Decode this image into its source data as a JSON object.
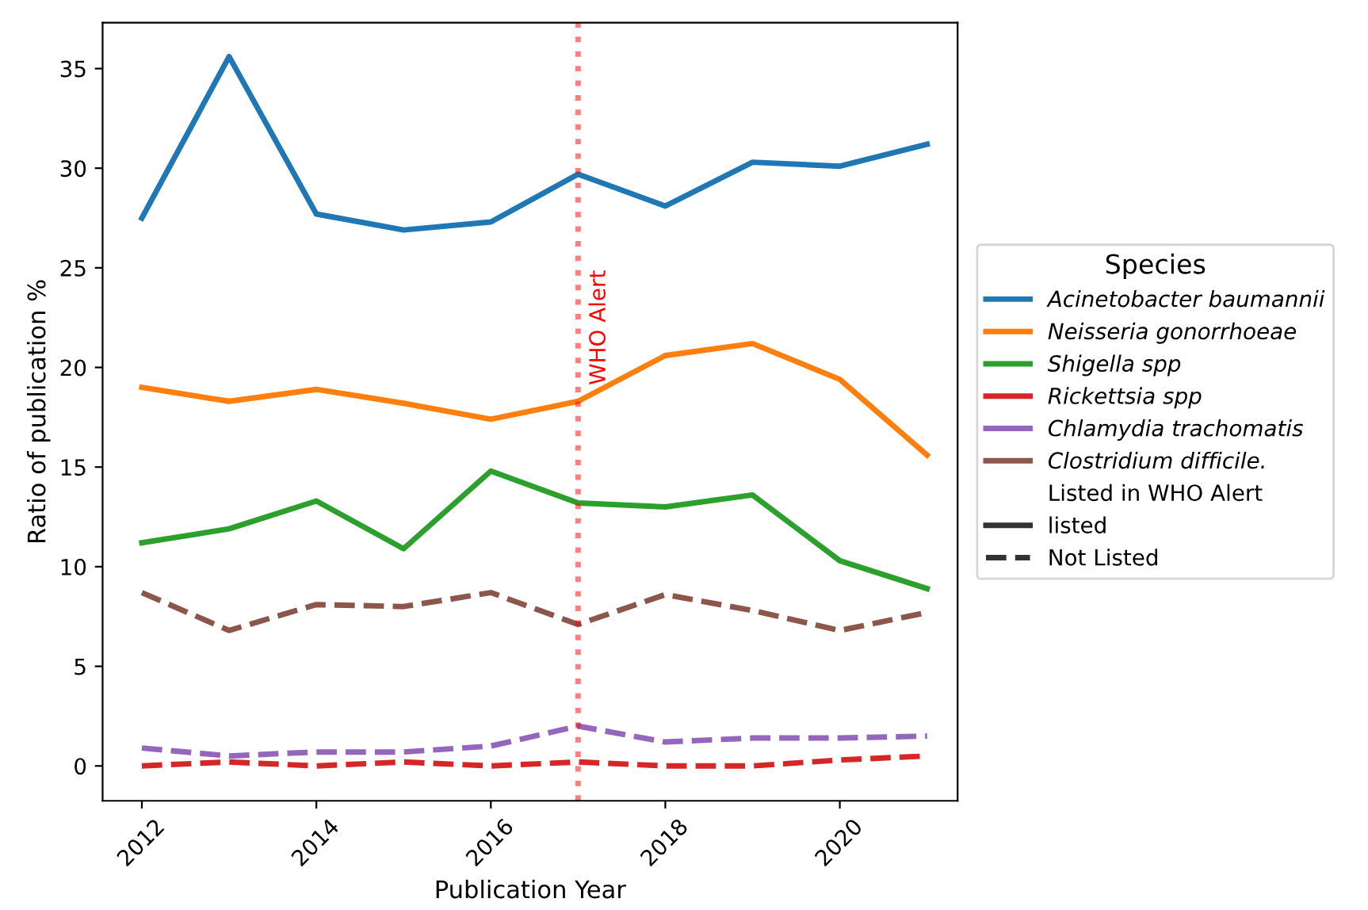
{
  "chart_data": {
    "type": "line",
    "xlabel": "Publication Year",
    "ylabel": "Ratio of publication %",
    "legend_title": "Species",
    "x": [
      2012,
      2013,
      2014,
      2015,
      2016,
      2017,
      2018,
      2019,
      2020,
      2021
    ],
    "series": [
      {
        "name": "Acinetobacter baumannii",
        "color": "#1f77b4",
        "line_style": "solid",
        "values": [
          27.5,
          35.6,
          27.7,
          26.9,
          27.3,
          29.7,
          28.1,
          30.3,
          30.1,
          31.2
        ]
      },
      {
        "name": "Neisseria gonorrhoeae",
        "color": "#ff7f0e",
        "line_style": "solid",
        "values": [
          19.0,
          18.3,
          18.9,
          18.2,
          17.4,
          18.3,
          20.6,
          21.2,
          19.4,
          15.6
        ]
      },
      {
        "name": "Shigella spp",
        "color": "#2ca02c",
        "line_style": "solid",
        "values": [
          11.2,
          11.9,
          13.3,
          10.9,
          14.8,
          13.2,
          13.0,
          13.6,
          10.3,
          8.9
        ]
      },
      {
        "name": "Rickettsia spp",
        "color": "#d62728",
        "line_style": "dashed",
        "values": [
          0.0,
          0.2,
          0.0,
          0.2,
          0.0,
          0.2,
          0.0,
          0.0,
          0.3,
          0.5
        ]
      },
      {
        "name": "Chlamydia trachomatis",
        "color": "#9467bd",
        "line_style": "dashed",
        "values": [
          0.9,
          0.5,
          0.7,
          0.7,
          1.0,
          2.0,
          1.2,
          1.4,
          1.4,
          1.5
        ]
      },
      {
        "name": "Clostridium difficile.",
        "color": "#8c564b",
        "line_style": "dashed",
        "values": [
          8.7,
          6.8,
          8.1,
          8.0,
          8.7,
          7.1,
          8.6,
          7.8,
          6.8,
          7.7
        ]
      }
    ],
    "annotations": [
      "Listed in WHO Alert",
      "listed",
      "Not Listed"
    ],
    "ref_lines": [
      {
        "axis": "x",
        "value": 2017,
        "label": "WHO Alert",
        "color": "#ff0000",
        "line_style": "dotted"
      }
    ],
    "xlim": [
      2011.55,
      2021.35
    ],
    "ylim": [
      -1.75,
      37.3
    ],
    "xticks": [
      2012,
      2014,
      2016,
      2018,
      2020
    ],
    "yticks": [
      0,
      5,
      10,
      15,
      20,
      25,
      30,
      35
    ],
    "grid": false,
    "legend": "right"
  }
}
